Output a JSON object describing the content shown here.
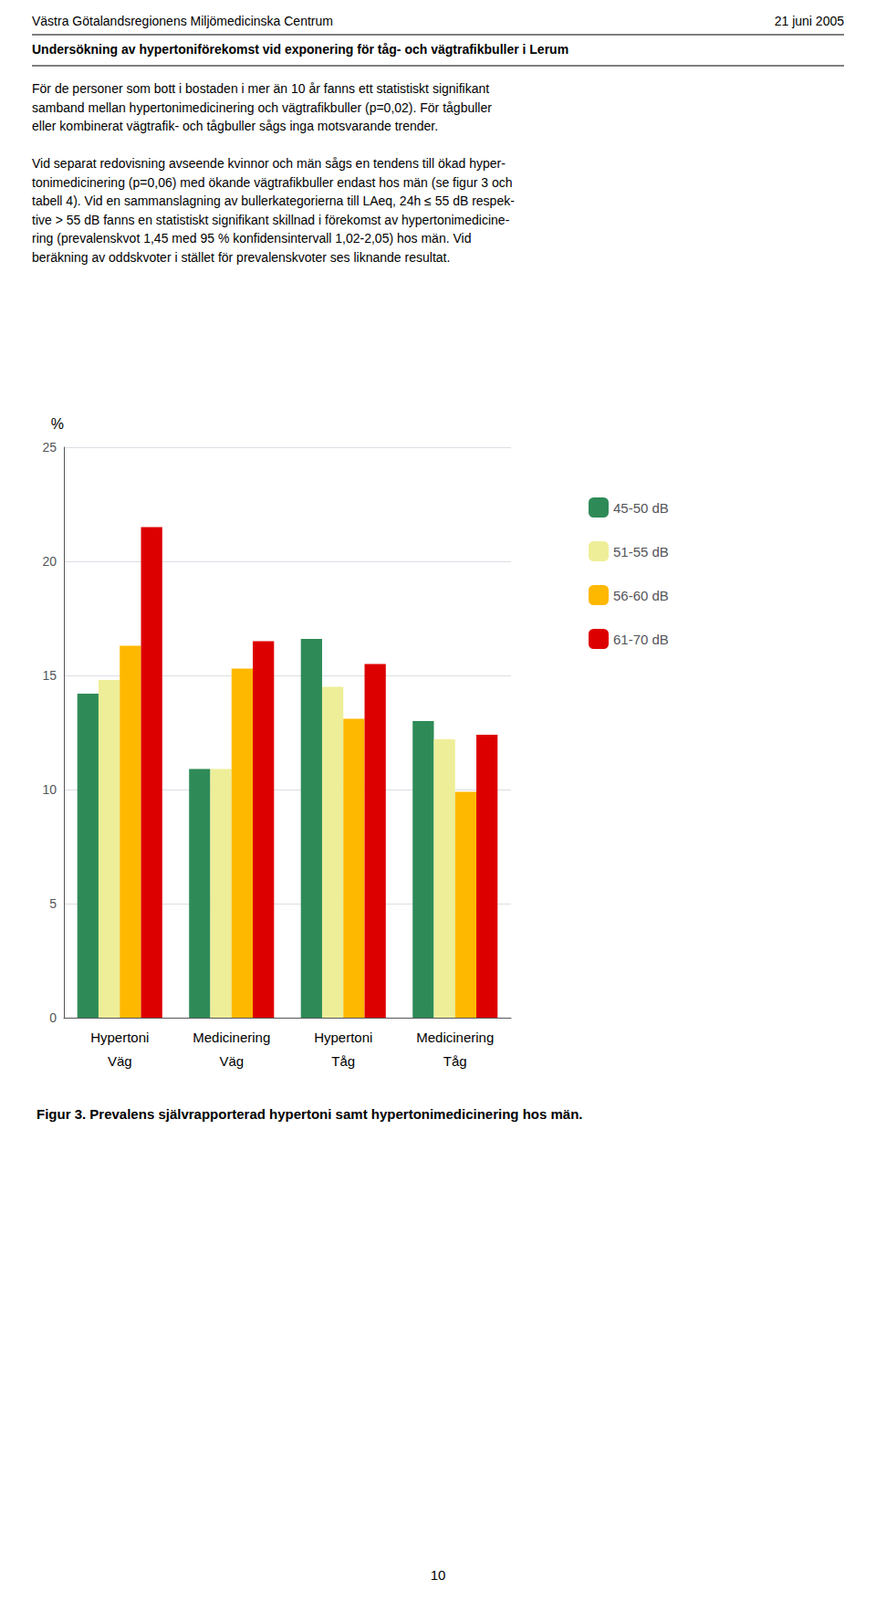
{
  "chart_data": {
    "type": "bar",
    "title": "Figur 3. Prevalens självrapporterad hypertoni samt hypertonimedicinering hos män.",
    "categories": [
      "Hypertoni\nVäg",
      "Medicinering\nVäg",
      "Hypertoni\nTåg",
      "Medicinering\nTåg"
    ],
    "series": [
      {
        "name": "45-50 dB",
        "color": "#2E8B57",
        "values": [
          14.2,
          10.9,
          16.6,
          13.0
        ]
      },
      {
        "name": "51-55 dB",
        "color": "#EEEE99",
        "values": [
          14.8,
          10.9,
          14.5,
          12.2
        ]
      },
      {
        "name": "56-60 dB",
        "color": "#FFB800",
        "values": [
          16.3,
          15.3,
          13.1,
          9.9
        ]
      },
      {
        "name": "61-70 dB",
        "color": "#DD0000",
        "values": [
          21.5,
          16.5,
          15.5,
          12.4
        ]
      }
    ],
    "ylabel": "%",
    "ylim": [
      0,
      25
    ],
    "yticks": [
      0,
      5,
      10,
      15,
      20,
      25
    ],
    "grid": true,
    "legend": "right",
    "annotations": [
      "Västra Götalandsregionens Miljömedicinska Centrum",
      "21 juni 2005",
      "Undersökning av hypertoniförekomst vid exponering för tåg- och vägtrafikbuller i Lerum",
      "För de personer som bott i bostaden i mer än 10 år fanns ett statistiskt signifikant",
      "samband mellan hypertonimedicinering och vägtrafikbuller (p=0,02). För tågbuller",
      "eller kombinerat vägtrafik- och tågbuller sågs inga motsvarande trender.",
      "Vid separat redovisning avseende kvinnor och män sågs en tendens till ökad hyper-",
      "tonimedicinering (p=0,06) med ökande vägtrafikbuller endast hos män (se figur 3 och",
      "tabell 4). Vid en sammanslagning av bullerkategorierna till LAeq, 24h ≤ 55 dB respek-",
      "tive > 55 dB fanns en statistiskt signifikant skillnad i förekomst av hypertonimedicine-",
      "ring (prevalenskvot 1,45 med 95 % konfidensintervall 1,02-2,05) hos män. Vid",
      "beräkning av oddskvoter i stället för prevalenskvoter ses liknande resultat.",
      "10"
    ]
  }
}
